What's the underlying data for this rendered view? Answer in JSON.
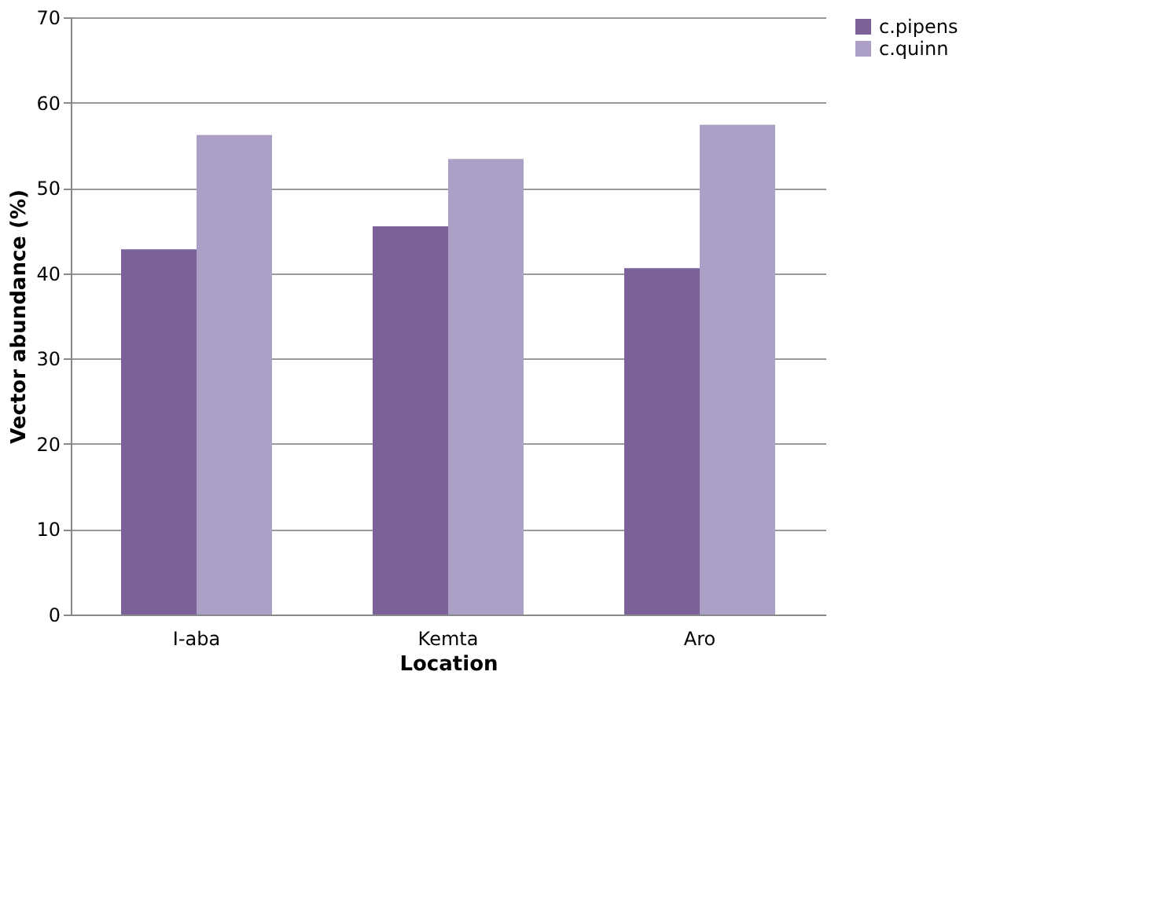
{
  "chart_data": {
    "type": "bar",
    "xlabel": "Location",
    "ylabel": "Vector abundance  (%)",
    "categories": [
      "I-aba",
      "Kemta",
      "Aro"
    ],
    "series": [
      {
        "name": "c.pipens",
        "color": "#7b6399",
        "values": [
          42.8,
          45.5,
          40.6
        ]
      },
      {
        "name": "c.quinn",
        "color": "#ada0c6",
        "values": [
          56.2,
          53.4,
          57.4
        ]
      }
    ],
    "ylim": [
      0,
      70
    ],
    "yticks": [
      0,
      10,
      20,
      30,
      40,
      50,
      60,
      70
    ],
    "grid": "y",
    "legend": "right"
  }
}
